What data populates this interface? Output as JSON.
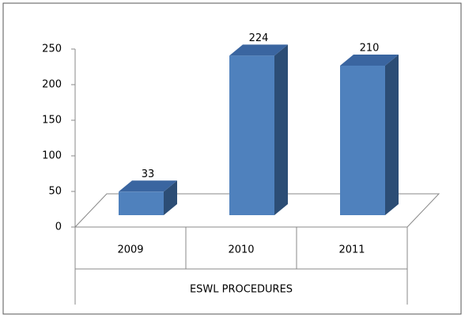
{
  "chart_data": {
    "type": "bar",
    "x_label": "ESWL PROCEDURES",
    "categories": [
      "2009",
      "2010",
      "2011"
    ],
    "values": [
      33,
      224,
      210
    ],
    "color": "#4f81bd",
    "ylim": [
      0,
      250
    ],
    "yticks": [
      0,
      50,
      100,
      150,
      200,
      250
    ]
  }
}
